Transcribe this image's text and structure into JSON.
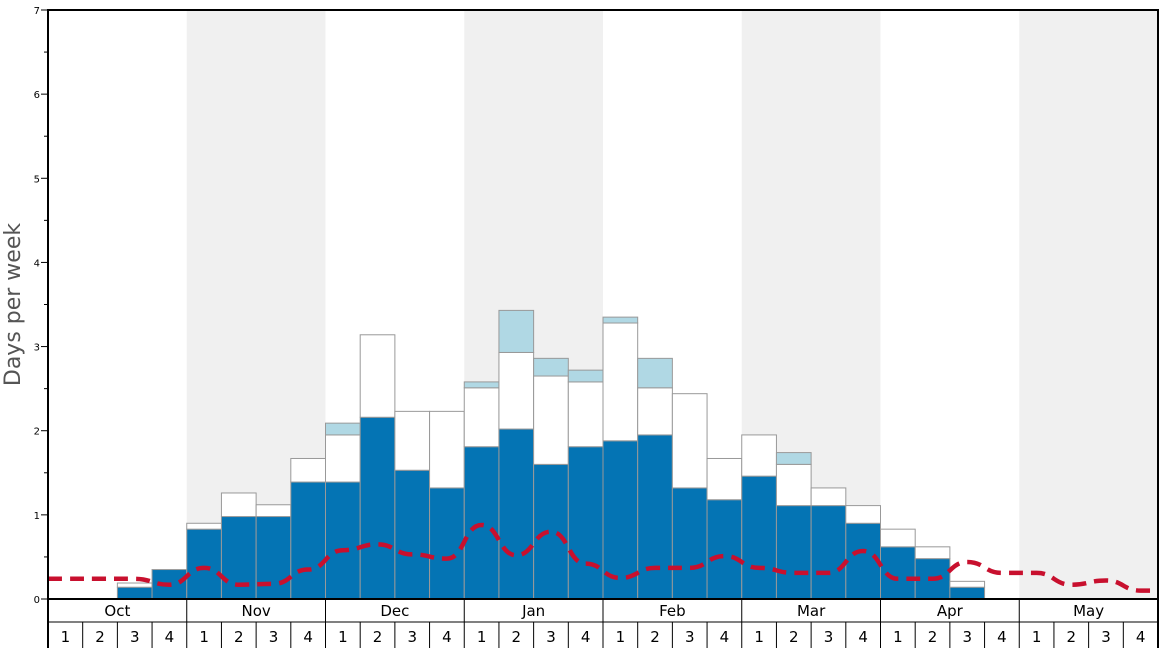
{
  "chart_data": {
    "type": "bar",
    "ylabel": "Days per week",
    "ylim": [
      0,
      7
    ],
    "yticks": [
      "0",
      "1",
      "2",
      "3",
      "4",
      "5",
      "6",
      "7"
    ],
    "months": [
      "Oct",
      "Nov",
      "Dec",
      "Jan",
      "Feb",
      "Mar",
      "Apr",
      "May"
    ],
    "weeks": [
      "1",
      "2",
      "3",
      "4"
    ],
    "stacked": true,
    "colors": {
      "base": "#0474b4",
      "middle": "#ffffff",
      "top": "#b0d8e4",
      "line": "#c8102e",
      "band": "#f0f0f0"
    },
    "series": [
      {
        "values": [
          0,
          0,
          0.14,
          0.35,
          0.83,
          0.98,
          0.98,
          1.39,
          1.39,
          2.16,
          1.53,
          1.32,
          1.81,
          2.02,
          1.6,
          1.81,
          1.88,
          1.95,
          1.32,
          1.18,
          1.46,
          1.11,
          1.11,
          0.9,
          0.62,
          0.48,
          0.14,
          0,
          0,
          0,
          0,
          0
        ]
      },
      {
        "values": [
          0,
          0,
          0.05,
          0,
          0.07,
          0.28,
          0.14,
          0.28,
          0.56,
          0.98,
          0.7,
          0.91,
          0.7,
          0.91,
          1.05,
          0.77,
          1.4,
          0.56,
          1.12,
          0.49,
          0.49,
          0.49,
          0.21,
          0.21,
          0.21,
          0.14,
          0.07,
          0,
          0,
          0,
          0,
          0
        ]
      },
      {
        "values": [
          0,
          0,
          0,
          0,
          0,
          0,
          0,
          0,
          0.14,
          0,
          0,
          0,
          0.07,
          0.5,
          0.21,
          0.14,
          0.07,
          0.35,
          0,
          0,
          0,
          0.14,
          0,
          0,
          0,
          0,
          0,
          0,
          0,
          0,
          0,
          0
        ]
      },
      {
        "type": "line",
        "values": [
          0.24,
          0.24,
          0.24,
          0.17,
          0.37,
          0.17,
          0.18,
          0.35,
          0.58,
          0.65,
          0.53,
          0.48,
          0.88,
          0.52,
          0.8,
          0.42,
          0.25,
          0.37,
          0.37,
          0.51,
          0.37,
          0.31,
          0.31,
          0.57,
          0.24,
          0.24,
          0.44,
          0.31,
          0.31,
          0.17,
          0.22,
          0.1
        ]
      }
    ]
  }
}
